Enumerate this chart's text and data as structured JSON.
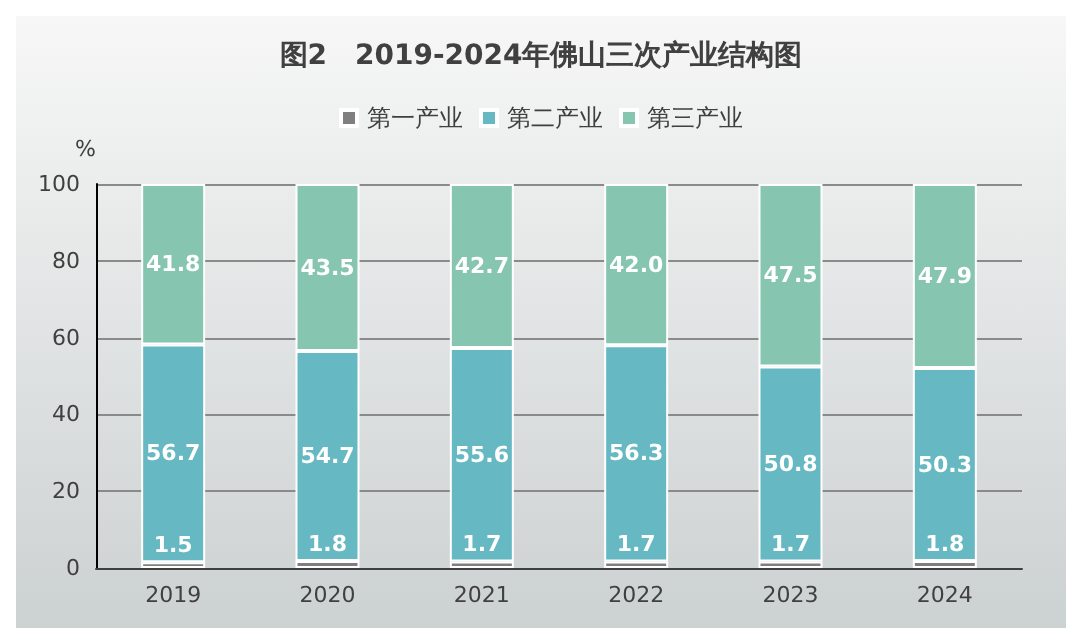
{
  "chart_data": {
    "type": "bar",
    "title": "图2　2019-2024年佛山三次产业结构图",
    "ylabel": "%",
    "categories": [
      "2019",
      "2020",
      "2021",
      "2022",
      "2023",
      "2024"
    ],
    "stacked": true,
    "series": [
      {
        "name": "第一产业",
        "color": "#7f7f7f",
        "values": [
          1.5,
          1.8,
          1.7,
          1.7,
          1.7,
          1.8
        ],
        "value_labels": [
          "1.5",
          "1.8",
          "1.7",
          "1.7",
          "1.7",
          "1.8"
        ]
      },
      {
        "name": "第二产业",
        "color": "#66b8c2",
        "values": [
          56.7,
          54.7,
          55.6,
          56.3,
          50.8,
          50.3
        ],
        "value_labels": [
          "56.7",
          "54.7",
          "55.6",
          "56.3",
          "50.8",
          "50.3"
        ]
      },
      {
        "name": "第三产业",
        "color": "#86c5b0",
        "values": [
          41.8,
          43.5,
          42.7,
          42.0,
          47.5,
          47.9
        ],
        "value_labels": [
          "41.8",
          "43.5",
          "42.7",
          "42.0",
          "47.5",
          "47.9"
        ]
      }
    ],
    "ylim": [
      0,
      100
    ],
    "yticks": [
      0,
      20,
      40,
      60,
      80,
      100
    ],
    "grid": "y",
    "legend": "top"
  }
}
